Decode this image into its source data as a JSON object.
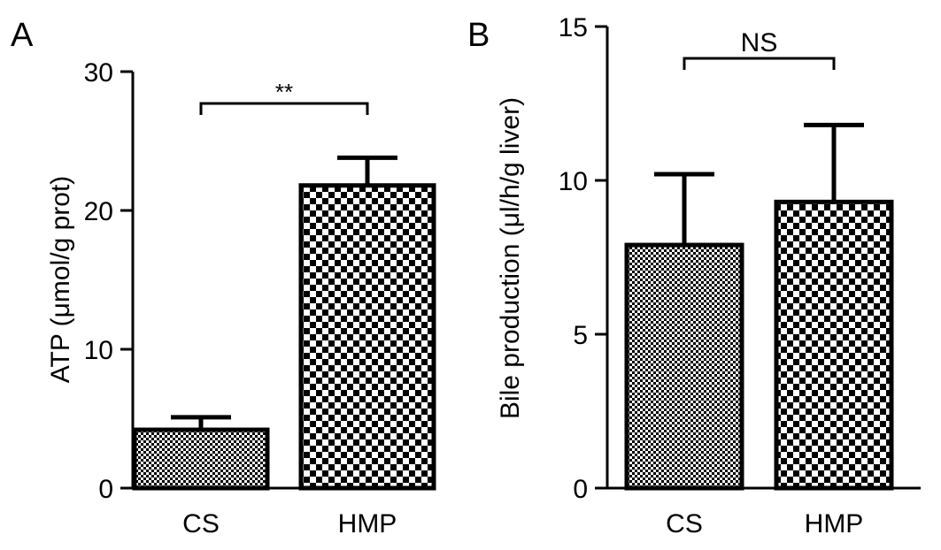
{
  "chart_data": [
    {
      "panel_label": "A",
      "type": "bar",
      "categories": [
        "CS",
        "HMP"
      ],
      "values": [
        4.2,
        21.8
      ],
      "error": [
        0.9,
        2.0
      ],
      "ylabel": "ATP (μmol/g prot)",
      "ylim": [
        0,
        30
      ],
      "yticks": [
        0,
        10,
        20,
        30
      ],
      "significance": {
        "between": [
          "CS",
          "HMP"
        ],
        "label": "**"
      },
      "patterns": [
        "fine-check",
        "coarse-check"
      ],
      "grid": false
    },
    {
      "panel_label": "B",
      "type": "bar",
      "categories": [
        "CS",
        "HMP"
      ],
      "values": [
        7.9,
        9.3
      ],
      "error": [
        2.3,
        2.5
      ],
      "ylabel": "Bile production (μl/h/g liver)",
      "ylim": [
        0,
        15
      ],
      "yticks": [
        0,
        5,
        10,
        15
      ],
      "significance": {
        "between": [
          "CS",
          "HMP"
        ],
        "label": "NS"
      },
      "patterns": [
        "fine-check",
        "coarse-check"
      ],
      "grid": false
    }
  ]
}
